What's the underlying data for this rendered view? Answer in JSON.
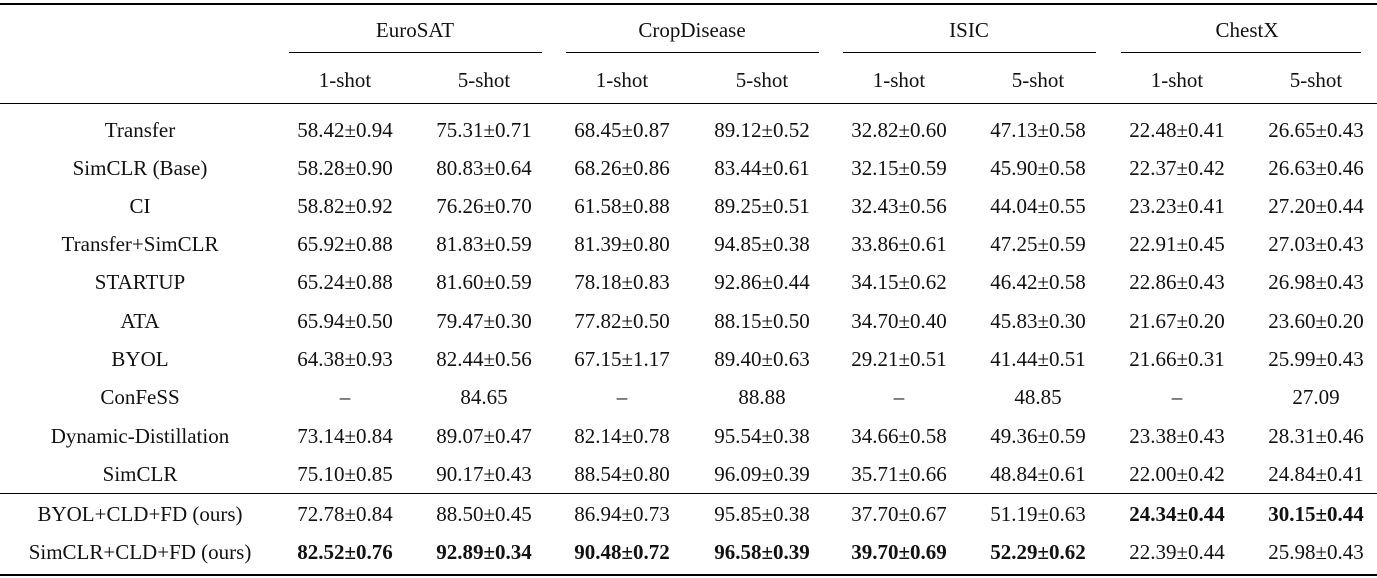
{
  "datasets": [
    "EuroSAT",
    "CropDisease",
    "ISIC",
    "ChestX"
  ],
  "shots": [
    "1-shot",
    "5-shot"
  ],
  "rows": [
    {
      "method": "Transfer",
      "cells": [
        "58.42±0.94",
        "75.31±0.71",
        "68.45±0.87",
        "89.12±0.52",
        "32.82±0.60",
        "47.13±0.58",
        "22.48±0.41",
        "26.65±0.43"
      ],
      "bold": [
        false,
        false,
        false,
        false,
        false,
        false,
        false,
        false
      ]
    },
    {
      "method": "SimCLR (Base)",
      "cells": [
        "58.28±0.90",
        "80.83±0.64",
        "68.26±0.86",
        "83.44±0.61",
        "32.15±0.59",
        "45.90±0.58",
        "22.37±0.42",
        "26.63±0.46"
      ],
      "bold": [
        false,
        false,
        false,
        false,
        false,
        false,
        false,
        false
      ]
    },
    {
      "method": "CI",
      "cells": [
        "58.82±0.92",
        "76.26±0.70",
        "61.58±0.88",
        "89.25±0.51",
        "32.43±0.56",
        "44.04±0.55",
        "23.23±0.41",
        "27.20±0.44"
      ],
      "bold": [
        false,
        false,
        false,
        false,
        false,
        false,
        false,
        false
      ]
    },
    {
      "method": "Transfer+SimCLR",
      "cells": [
        "65.92±0.88",
        "81.83±0.59",
        "81.39±0.80",
        "94.85±0.38",
        "33.86±0.61",
        "47.25±0.59",
        "22.91±0.45",
        "27.03±0.43"
      ],
      "bold": [
        false,
        false,
        false,
        false,
        false,
        false,
        false,
        false
      ]
    },
    {
      "method": "STARTUP",
      "cells": [
        "65.24±0.88",
        "81.60±0.59",
        "78.18±0.83",
        "92.86±0.44",
        "34.15±0.62",
        "46.42±0.58",
        "22.86±0.43",
        "26.98±0.43"
      ],
      "bold": [
        false,
        false,
        false,
        false,
        false,
        false,
        false,
        false
      ]
    },
    {
      "method": "ATA",
      "cells": [
        "65.94±0.50",
        "79.47±0.30",
        "77.82±0.50",
        "88.15±0.50",
        "34.70±0.40",
        "45.83±0.30",
        "21.67±0.20",
        "23.60±0.20"
      ],
      "bold": [
        false,
        false,
        false,
        false,
        false,
        false,
        false,
        false
      ]
    },
    {
      "method": "BYOL",
      "cells": [
        "64.38±0.93",
        "82.44±0.56",
        "67.15±1.17",
        "89.40±0.63",
        "29.21±0.51",
        "41.44±0.51",
        "21.66±0.31",
        "25.99±0.43"
      ],
      "bold": [
        false,
        false,
        false,
        false,
        false,
        false,
        false,
        false
      ]
    },
    {
      "method": "ConFeSS",
      "cells": [
        "–",
        "84.65",
        "–",
        "88.88",
        "–",
        "48.85",
        "–",
        "27.09"
      ],
      "bold": [
        false,
        false,
        false,
        false,
        false,
        false,
        false,
        false
      ]
    },
    {
      "method": "Dynamic-Distillation",
      "cells": [
        "73.14±0.84",
        "89.07±0.47",
        "82.14±0.78",
        "95.54±0.38",
        "34.66±0.58",
        "49.36±0.59",
        "23.38±0.43",
        "28.31±0.46"
      ],
      "bold": [
        false,
        false,
        false,
        false,
        false,
        false,
        false,
        false
      ]
    },
    {
      "method": "SimCLR",
      "cells": [
        "75.10±0.85",
        "90.17±0.43",
        "88.54±0.80",
        "96.09±0.39",
        "35.71±0.66",
        "48.84±0.61",
        "22.00±0.42",
        "24.84±0.41"
      ],
      "bold": [
        false,
        false,
        false,
        false,
        false,
        false,
        false,
        false
      ]
    },
    {
      "method": "BYOL+CLD+FD (ours)",
      "cells": [
        "72.78±0.84",
        "88.50±0.45",
        "86.94±0.73",
        "95.85±0.38",
        "37.70±0.67",
        "51.19±0.63",
        "24.34±0.44",
        "30.15±0.44"
      ],
      "bold": [
        false,
        false,
        false,
        false,
        false,
        false,
        true,
        true
      ]
    },
    {
      "method": "SimCLR+CLD+FD (ours)",
      "cells": [
        "82.52±0.76",
        "92.89±0.34",
        "90.48±0.72",
        "96.58±0.39",
        "39.70±0.69",
        "52.29±0.62",
        "22.39±0.44",
        "25.98±0.43"
      ],
      "bold": [
        true,
        true,
        true,
        true,
        true,
        true,
        false,
        false
      ]
    }
  ]
}
